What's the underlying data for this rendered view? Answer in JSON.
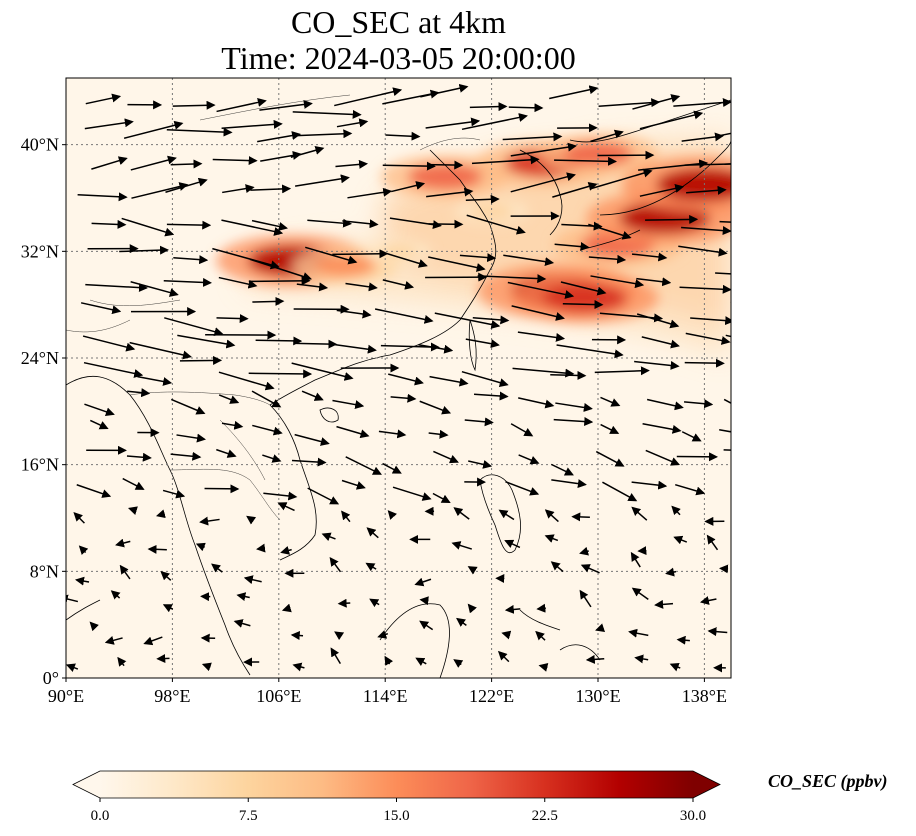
{
  "map": {
    "title_line1": "CO_SEC at 4km",
    "title_line2": "Time: 2024-03-05 20:00:00",
    "projection": "PlateCarree",
    "extent": {
      "lon_min": 90,
      "lon_max": 140,
      "lat_min": 0,
      "lat_max": 45
    },
    "lon_ticks": [
      {
        "value": 90,
        "label": "90°E"
      },
      {
        "value": 98,
        "label": "98°E"
      },
      {
        "value": 106,
        "label": "106°E"
      },
      {
        "value": 114,
        "label": "114°E"
      },
      {
        "value": 122,
        "label": "122°E"
      },
      {
        "value": 130,
        "label": "130°E"
      },
      {
        "value": 138,
        "label": "138°E"
      }
    ],
    "lat_ticks": [
      {
        "value": 0,
        "label": "0°"
      },
      {
        "value": 8,
        "label": "8°N"
      },
      {
        "value": 16,
        "label": "16°N"
      },
      {
        "value": 24,
        "label": "24°N"
      },
      {
        "value": 32,
        "label": "32°N"
      },
      {
        "value": 40,
        "label": "40°N"
      }
    ],
    "gridlines": true,
    "layers": [
      "CO_SEC filled contours",
      "wind vectors",
      "coastlines",
      "country borders"
    ]
  },
  "colorbar": {
    "label": "CO_SEC (ppbv)",
    "colormap": "OrRd",
    "min": 0,
    "max": 30,
    "ticks": [
      {
        "value": 0,
        "label": "0.0"
      },
      {
        "value": 7.5,
        "label": "7.5"
      },
      {
        "value": 15,
        "label": "15.0"
      },
      {
        "value": 22.5,
        "label": "22.5"
      },
      {
        "value": 30,
        "label": "30.0"
      }
    ],
    "extend": "both",
    "colors": [
      "#fff7ec",
      "#fee8c8",
      "#fdd49e",
      "#fdbb84",
      "#fc8d59",
      "#ef6548",
      "#d7301f",
      "#b30000",
      "#7f0000"
    ]
  },
  "plumes": [
    {
      "lon": 107,
      "lat": 31.3,
      "value": 25
    },
    {
      "lon": 111,
      "lat": 30.9,
      "value": 15
    },
    {
      "lon": 118.5,
      "lat": 37.6,
      "value": 20
    },
    {
      "lon": 126,
      "lat": 38.6,
      "value": 22
    },
    {
      "lon": 130,
      "lat": 39.3,
      "value": 18
    },
    {
      "lon": 127,
      "lat": 29.0,
      "value": 27
    },
    {
      "lon": 129,
      "lat": 28.5,
      "value": 24
    },
    {
      "lon": 131.5,
      "lat": 32.5,
      "value": 20
    },
    {
      "lon": 135,
      "lat": 34.5,
      "value": 26
    },
    {
      "lon": 138,
      "lat": 37.0,
      "value": 28
    },
    {
      "lon": 122,
      "lat": 35.0,
      "value": 8
    },
    {
      "lon": 115,
      "lat": 32.0,
      "value": 6
    }
  ]
}
